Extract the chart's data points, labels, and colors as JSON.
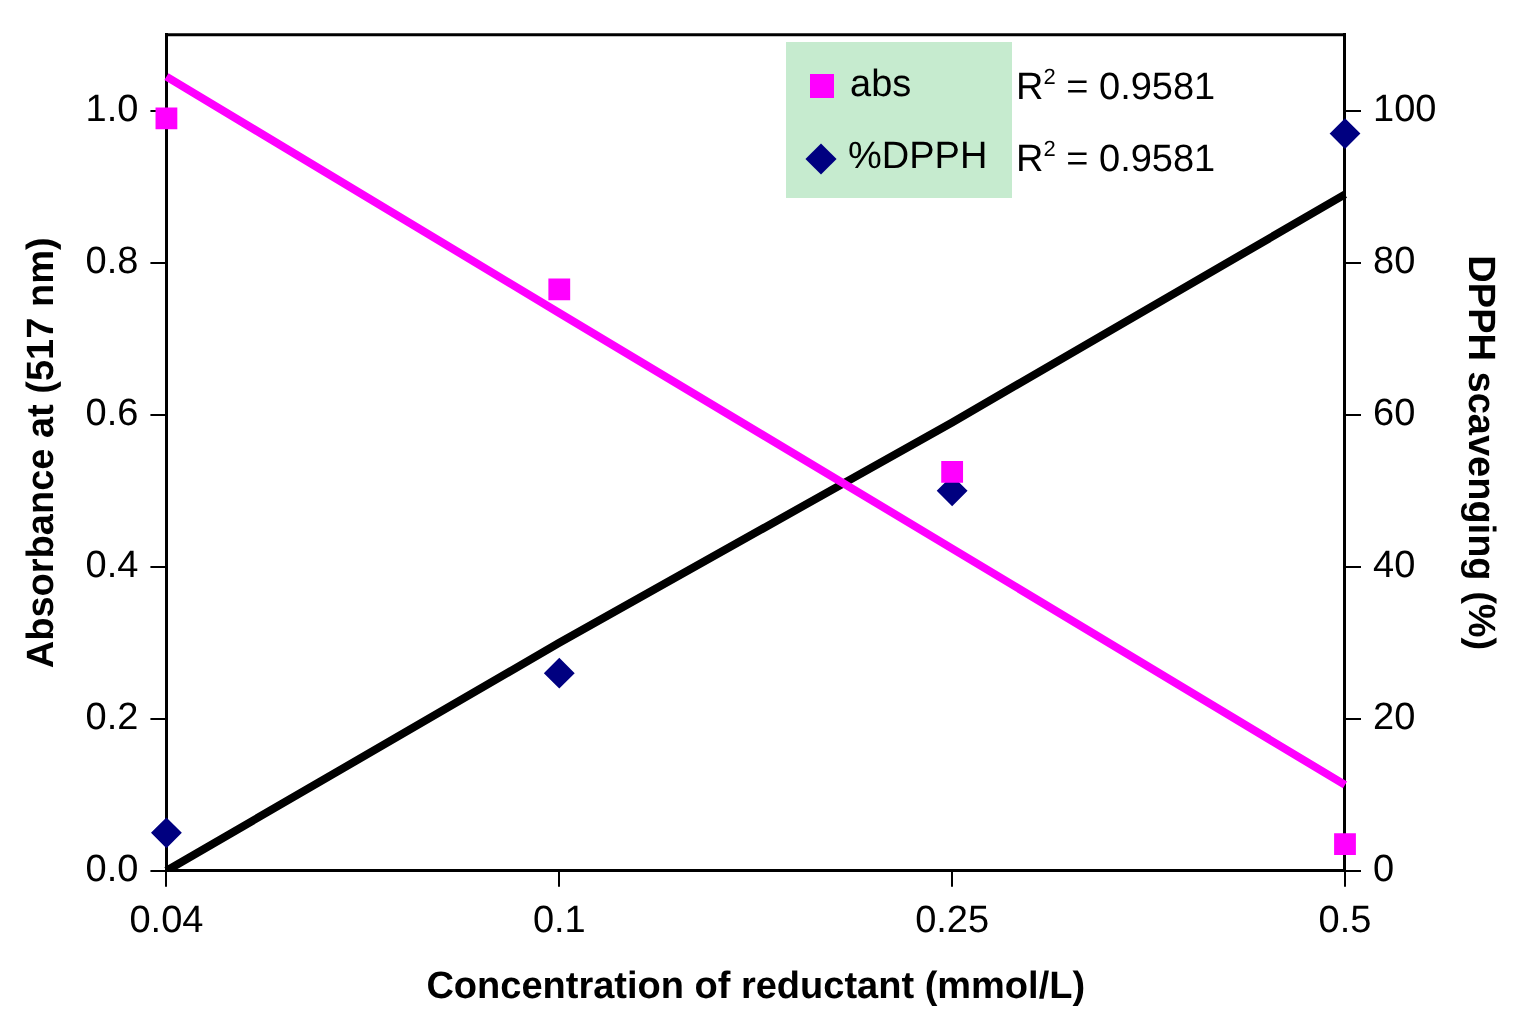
{
  "chart_data": {
    "type": "scatter",
    "xlabel": "Concentration of reductant (mmol/L)",
    "ylabel": "Absorbance at (517 nm)",
    "y2label": "DPPH scavenging (%)",
    "categories": [
      "0.04",
      "0.1",
      "0.25",
      "0.5"
    ],
    "series": [
      {
        "name": "abs",
        "color": "#ff00ff",
        "marker": "square",
        "values": [
          0.99,
          0.765,
          0.525,
          0.035
        ]
      },
      {
        "name": "%DPPH",
        "color": "#000080",
        "marker": "diamond",
        "axis": "y2",
        "values": [
          5,
          26,
          50,
          97
        ]
      },
      {
        "type": "line",
        "color": "#ff00ff",
        "marker": "none",
        "values": [
          1.045,
          0.734,
          0.424,
          0.113
        ]
      },
      {
        "type": "line",
        "color": "#000000",
        "marker": "none",
        "axis": "y2",
        "values": [
          0,
          30,
          59,
          89
        ]
      }
    ],
    "ylim": [
      0,
      1.1
    ],
    "yticks": [
      {
        "value": 0,
        "label": "0.0"
      },
      {
        "value": 0.2,
        "label": "0.2"
      },
      {
        "value": 0.4,
        "label": "0.4"
      },
      {
        "value": 0.6,
        "label": "0.6"
      },
      {
        "value": 0.8,
        "label": "0.8"
      },
      {
        "value": 1,
        "label": "1.0"
      }
    ],
    "y2lim": [
      0,
      110
    ],
    "y2ticks": [
      0,
      20,
      40,
      60,
      80,
      100
    ],
    "grid": false,
    "legend": "top right",
    "annotations": [
      "R$^{2}$ = 0.9581",
      "R$^{2}$ = 0.9581"
    ]
  }
}
